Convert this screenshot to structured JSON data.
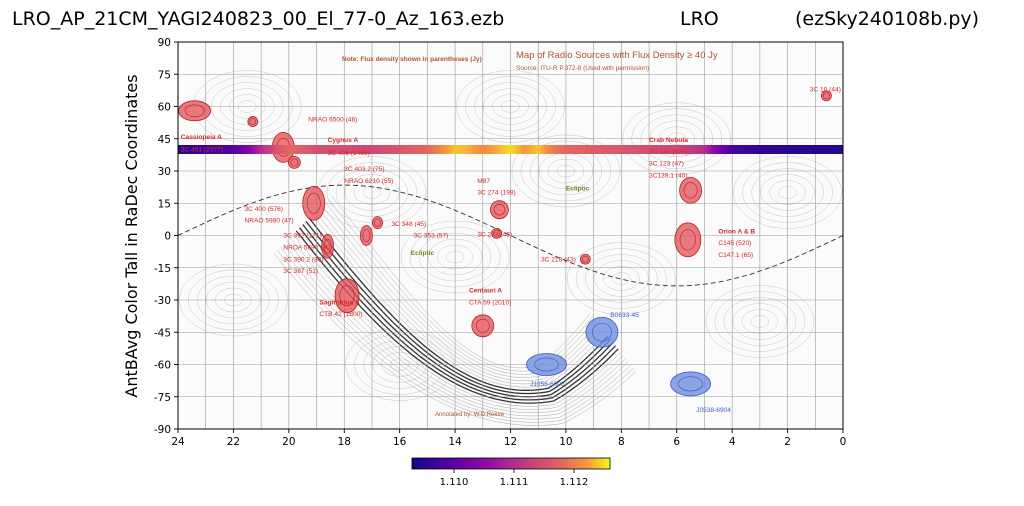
{
  "header": {
    "left": "LRO_AP_21CM_YAGI240823_00_El_77-0_Az_163.ezb",
    "middle": "LRO",
    "right": "(ezSky240108b.py)"
  },
  "chart_data": {
    "type": "heatmap",
    "ylabel": "AntBAvg Color Tall in RaDec Coordinates",
    "xlabel": "",
    "xlim": [
      24,
      0
    ],
    "ylim": [
      -90,
      90
    ],
    "x_ticks": [
      "24",
      "22",
      "20",
      "18",
      "16",
      "14",
      "12",
      "10",
      "8",
      "6",
      "4",
      "2",
      "0"
    ],
    "y_ticks": [
      "90",
      "75",
      "60",
      "45",
      "30",
      "15",
      "0",
      "-15",
      "-30",
      "-45",
      "-60",
      "-75",
      "-90"
    ],
    "band": {
      "dec": 40,
      "ra": [
        24.0,
        23.0,
        22.0,
        21.5,
        21.0,
        20.5,
        20.0,
        19.5,
        19.0,
        18.0,
        17.0,
        16.0,
        15.0,
        14.5,
        14.0,
        13.5,
        13.0,
        12.5,
        12.0,
        11.5,
        11.0,
        10.5,
        10.0,
        9.0,
        8.0,
        7.0,
        6.0,
        5.0,
        4.5,
        4.0,
        3.0,
        2.0,
        1.0,
        0.0
      ],
      "values": [
        1.1095,
        1.1097,
        1.1099,
        1.1103,
        1.111,
        1.1115,
        1.1118,
        1.1117,
        1.1115,
        1.1115,
        1.1114,
        1.1116,
        1.1118,
        1.1121,
        1.1124,
        1.1123,
        1.1121,
        1.1123,
        1.1125,
        1.1122,
        1.1124,
        1.112,
        1.1118,
        1.1117,
        1.1116,
        1.1115,
        1.1114,
        1.111,
        1.1103,
        1.1098,
        1.1096,
        1.1095,
        1.1095,
        1.1095
      ]
    },
    "colorbar": {
      "ticks": [
        "1.110",
        "1.111",
        "1.112"
      ],
      "tick_values": [
        1.11,
        1.111,
        1.112
      ],
      "range": [
        1.1093,
        1.1126
      ],
      "colormap": "plasma"
    },
    "background_map": {
      "title": "Map of Radio Sources with Flux Density ≥ 40 Jy",
      "source": "Source: ITU-R P.372-8 (Used with permission)",
      "note": "Note: Flux density shown in parentheses (Jy)",
      "annotated": "Annotated by: W.D.Reeve",
      "labels": [
        {
          "text": "NRAO 6500 (46)",
          "ra": 19.3,
          "dec": 53,
          "color": "#d42a2a"
        },
        {
          "text": "Cassiopeia A",
          "ra": 23.9,
          "dec": 45,
          "color": "#d42a2a",
          "bold": true
        },
        {
          "text": "3C 461 (2477)",
          "ra": 23.9,
          "dec": 39,
          "color": "#d42a2a"
        },
        {
          "text": "Cygnus A",
          "ra": 18.6,
          "dec": 43.5,
          "color": "#d42a2a",
          "bold": true
        },
        {
          "text": "3C 405 (1495)",
          "ra": 18.6,
          "dec": 37.5,
          "color": "#d42a2a"
        },
        {
          "text": "3C 403.2 (75)",
          "ra": 18.0,
          "dec": 30,
          "color": "#d42a2a"
        },
        {
          "text": "NRAO 6210 (55)",
          "ra": 18.0,
          "dec": 24.5,
          "color": "#d42a2a"
        },
        {
          "text": "3C 400 (576)",
          "ra": 21.6,
          "dec": 11.5,
          "color": "#d42a2a"
        },
        {
          "text": "NRAO 5980 (47)",
          "ra": 21.6,
          "dec": 6,
          "color": "#d42a2a"
        },
        {
          "text": "3C 392 (171)",
          "ra": 20.2,
          "dec": -1,
          "color": "#d42a2a"
        },
        {
          "text": "NROA 5690 (90)",
          "ra": 20.2,
          "dec": -6.5,
          "color": "#d42a2a"
        },
        {
          "text": "3C 390.2 (80)",
          "ra": 20.2,
          "dec": -12,
          "color": "#d42a2a"
        },
        {
          "text": "3C 387  (51)",
          "ra": 20.2,
          "dec": -17.5,
          "color": "#d42a2a"
        },
        {
          "text": "3C 348 (45)",
          "ra": 16.3,
          "dec": 4.5,
          "color": "#d42a2a"
        },
        {
          "text": "3C 353 (57)",
          "ra": 15.5,
          "dec": -1,
          "color": "#d42a2a"
        },
        {
          "text": "3C 273 (46)",
          "ra": 13.2,
          "dec": -0.5,
          "color": "#d42a2a"
        },
        {
          "text": "M87",
          "ra": 13.2,
          "dec": 24.5,
          "color": "#d42a2a"
        },
        {
          "text": "3C 274 (198)",
          "ra": 13.2,
          "dec": 19,
          "color": "#d42a2a"
        },
        {
          "text": "3C 218 (43)",
          "ra": 10.9,
          "dec": -12,
          "color": "#d42a2a"
        },
        {
          "text": "Crab Nebula",
          "ra": 7.0,
          "dec": 43.5,
          "color": "#d42a2a",
          "bold": true
        },
        {
          "text": "3C 144 (875)",
          "ra": 7.0,
          "dec": 38,
          "color": "#d42a2a"
        },
        {
          "text": "3C 123 (47)",
          "ra": 7.0,
          "dec": 32.5,
          "color": "#d42a2a"
        },
        {
          "text": "3C139.1 (40)",
          "ra": 7.0,
          "dec": 27,
          "color": "#d42a2a"
        },
        {
          "text": "Orion A & B",
          "ra": 4.5,
          "dec": 1,
          "color": "#d42a2a",
          "bold": true
        },
        {
          "text": "C145 (520)",
          "ra": 4.5,
          "dec": -4.5,
          "color": "#d42a2a"
        },
        {
          "text": "C147.1 (65)",
          "ra": 4.5,
          "dec": -10,
          "color": "#d42a2a"
        },
        {
          "text": "3C 10 (44)",
          "ra": 1.2,
          "dec": 67,
          "color": "#d42a2a"
        },
        {
          "text": "Sagittarius A",
          "ra": 18.9,
          "dec": -32,
          "color": "#d42a2a",
          "bold": true
        },
        {
          "text": "CTB 42 (1800)",
          "ra": 18.9,
          "dec": -37.5,
          "color": "#d42a2a"
        },
        {
          "text": "Centauri A",
          "ra": 13.5,
          "dec": -26.5,
          "color": "#d42a2a",
          "bold": true
        },
        {
          "text": "CTA 59 (2010)",
          "ra": 13.5,
          "dec": -32,
          "color": "#d42a2a"
        },
        {
          "text": "B0833-45",
          "ra": 8.4,
          "dec": -38,
          "color": "#3a62c8"
        },
        {
          "text": "J1056-6006",
          "ra": 11.3,
          "dec": -70,
          "color": "#3a62c8"
        },
        {
          "text": "J0538-6904",
          "ra": 5.3,
          "dec": -82,
          "color": "#3a62c8"
        },
        {
          "text": "Ecliptic",
          "ra": 10.0,
          "dec": 21,
          "color": "#7a7a1a",
          "bold": true
        },
        {
          "text": "Ecliptic",
          "ra": 15.6,
          "dec": -9,
          "color": "#7a7a1a",
          "bold": true
        }
      ],
      "red_sources": [
        {
          "ra": 23.4,
          "dec": 58,
          "rx": 16,
          "ry": 10
        },
        {
          "ra": 21.3,
          "dec": 53,
          "rx": 5,
          "ry": 5
        },
        {
          "ra": 20.2,
          "dec": 41,
          "rx": 11,
          "ry": 15
        },
        {
          "ra": 19.8,
          "dec": 34,
          "rx": 6,
          "ry": 6
        },
        {
          "ra": 19.1,
          "dec": 15,
          "rx": 11,
          "ry": 17
        },
        {
          "ra": 18.6,
          "dec": -5,
          "rx": 6,
          "ry": 12
        },
        {
          "ra": 17.9,
          "dec": -28,
          "rx": 12,
          "ry": 17
        },
        {
          "ra": 17.2,
          "dec": 0,
          "rx": 6,
          "ry": 10
        },
        {
          "ra": 16.8,
          "dec": 6,
          "rx": 5,
          "ry": 6
        },
        {
          "ra": 13.0,
          "dec": -42,
          "rx": 11,
          "ry": 11
        },
        {
          "ra": 12.4,
          "dec": 12,
          "rx": 9,
          "ry": 9
        },
        {
          "ra": 12.5,
          "dec": 1,
          "rx": 5,
          "ry": 5
        },
        {
          "ra": 9.3,
          "dec": -11,
          "rx": 5,
          "ry": 5
        },
        {
          "ra": 5.5,
          "dec": 21,
          "rx": 11,
          "ry": 13
        },
        {
          "ra": 5.6,
          "dec": -2,
          "rx": 13,
          "ry": 17
        },
        {
          "ra": 0.6,
          "dec": 65,
          "rx": 5,
          "ry": 5
        }
      ],
      "blue_sources": [
        {
          "ra": 8.7,
          "dec": -45,
          "rx": 16,
          "ry": 15
        },
        {
          "ra": 10.7,
          "dec": -60,
          "rx": 20,
          "ry": 11
        },
        {
          "ra": 5.5,
          "dec": -69,
          "rx": 20,
          "ry": 12
        }
      ]
    }
  }
}
